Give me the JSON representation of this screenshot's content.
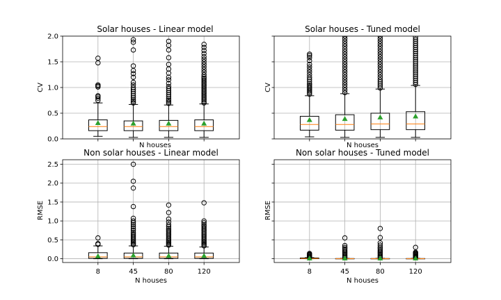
{
  "chart_data": [
    {
      "type": "box",
      "title": "Solar houses - Linear model",
      "xlabel": "N houses",
      "ylabel": "CV",
      "categories": [
        "8",
        "45",
        "80",
        "120"
      ],
      "ylim": [
        0,
        2.0
      ],
      "yticks": [
        "0.0",
        "0.5",
        "1.0",
        "1.5",
        "2.0"
      ],
      "show_xticklabels": false,
      "show_yticklabels": true,
      "grid": true,
      "boxes": [
        {
          "whislo": 0.05,
          "q1": 0.16,
          "median": 0.24,
          "q3": 0.37,
          "whishi": 0.7,
          "mean": 0.31,
          "fliers": [
            0.75,
            0.79,
            0.82,
            0.84,
            1.01,
            1.03,
            1.05,
            1.48,
            1.57
          ]
        },
        {
          "whislo": 0.03,
          "q1": 0.16,
          "median": 0.24,
          "q3": 0.35,
          "whishi": 0.67,
          "mean": 0.3,
          "fliers": [
            0.7,
            0.73,
            0.76,
            0.8,
            0.84,
            0.88,
            0.92,
            0.96,
            1.0,
            1.05,
            1.1,
            1.2,
            1.27,
            1.33,
            1.42,
            1.73,
            1.88,
            1.93
          ]
        },
        {
          "whislo": 0.03,
          "q1": 0.16,
          "median": 0.24,
          "q3": 0.36,
          "whishi": 0.66,
          "mean": 0.3,
          "fliers": [
            0.69,
            0.72,
            0.75,
            0.78,
            0.82,
            0.86,
            0.9,
            0.94,
            0.98,
            1.02,
            1.08,
            1.15,
            1.2,
            1.28,
            1.36,
            1.45,
            1.58,
            1.73,
            1.82,
            1.9
          ]
        },
        {
          "whislo": 0.03,
          "q1": 0.16,
          "median": 0.24,
          "q3": 0.37,
          "whishi": 0.68,
          "mean": 0.3,
          "fliers": [
            0.7,
            0.73,
            0.76,
            0.79,
            0.82,
            0.85,
            0.88,
            0.91,
            0.94,
            0.97,
            1.0,
            1.03,
            1.06,
            1.09,
            1.12,
            1.15,
            1.18,
            1.21,
            1.25,
            1.3,
            1.35,
            1.4,
            1.45,
            1.5,
            1.55,
            1.6,
            1.66,
            1.72,
            1.78,
            1.84
          ]
        }
      ]
    },
    {
      "type": "box",
      "title": "Solar houses - Tuned model",
      "xlabel": "N houses",
      "ylabel": "CV",
      "categories": [
        "8",
        "45",
        "80",
        "120"
      ],
      "ylim": [
        0,
        2.0
      ],
      "yticks": [
        "0.0",
        "0.5",
        "1.0",
        "1.5",
        "2.0"
      ],
      "show_xticklabels": false,
      "show_yticklabels": false,
      "grid": true,
      "boxes": [
        {
          "whislo": 0.04,
          "q1": 0.17,
          "median": 0.28,
          "q3": 0.44,
          "whishi": 0.84,
          "mean": 0.37,
          "fliers": [
            0.87,
            0.9,
            0.93,
            0.96,
            0.99,
            1.02,
            1.05,
            1.08,
            1.12,
            1.16,
            1.2,
            1.25,
            1.3,
            1.35,
            1.4,
            1.45,
            1.52,
            1.58,
            1.62,
            1.65
          ]
        },
        {
          "whislo": 0.03,
          "q1": 0.17,
          "median": 0.28,
          "q3": 0.47,
          "whishi": 0.88,
          "mean": 0.39,
          "fliers": [
            0.9,
            0.95,
            1.0,
            1.05,
            1.1,
            1.15,
            1.2,
            1.25,
            1.3,
            1.35,
            1.4,
            1.45,
            1.5,
            1.55,
            1.6,
            1.65,
            1.7,
            1.75,
            1.8,
            1.85,
            1.9,
            1.95,
            2.0
          ]
        },
        {
          "whislo": 0.03,
          "q1": 0.18,
          "median": 0.29,
          "q3": 0.5,
          "whishi": 0.97,
          "mean": 0.42,
          "fliers": [
            0.99,
            1.03,
            1.07,
            1.11,
            1.15,
            1.2,
            1.25,
            1.3,
            1.35,
            1.4,
            1.45,
            1.5,
            1.55,
            1.6,
            1.65,
            1.7,
            1.75,
            1.8,
            1.85,
            1.9,
            1.95,
            2.0
          ]
        },
        {
          "whislo": 0.03,
          "q1": 0.18,
          "median": 0.29,
          "q3": 0.53,
          "whishi": 1.04,
          "mean": 0.44,
          "fliers": [
            1.06,
            1.1,
            1.14,
            1.18,
            1.22,
            1.26,
            1.3,
            1.34,
            1.38,
            1.42,
            1.46,
            1.5,
            1.54,
            1.58,
            1.62,
            1.66,
            1.7,
            1.74,
            1.78,
            1.82,
            1.86,
            1.9,
            1.94,
            1.98
          ]
        }
      ]
    },
    {
      "type": "box",
      "title": "Non solar houses - Linear model",
      "xlabel": "N houses",
      "ylabel": "RMSE",
      "categories": [
        "8",
        "45",
        "80",
        "120"
      ],
      "ylim": [
        -0.1,
        2.62
      ],
      "yticks": [
        "0.0",
        "0.5",
        "1.0",
        "1.5",
        "2.0",
        "2.5"
      ],
      "show_xticklabels": true,
      "show_yticklabels": true,
      "grid": true,
      "boxes": [
        {
          "whislo": 0.0,
          "q1": 0.01,
          "median": 0.05,
          "q3": 0.16,
          "whishi": 0.34,
          "mean": 0.07,
          "fliers": [
            0.38,
            0.4,
            0.55
          ]
        },
        {
          "whislo": 0.0,
          "q1": 0.01,
          "median": 0.05,
          "q3": 0.15,
          "whishi": 0.34,
          "mean": 0.09,
          "fliers": [
            0.37,
            0.4,
            0.43,
            0.46,
            0.5,
            0.54,
            0.58,
            0.62,
            0.66,
            0.7,
            0.75,
            0.8,
            0.85,
            0.9,
            0.95,
            1.0,
            1.07,
            1.38,
            1.87,
            2.05,
            2.5
          ]
        },
        {
          "whislo": 0.0,
          "q1": 0.01,
          "median": 0.05,
          "q3": 0.15,
          "whishi": 0.33,
          "mean": 0.08,
          "fliers": [
            0.36,
            0.39,
            0.42,
            0.45,
            0.48,
            0.52,
            0.56,
            0.6,
            0.64,
            0.68,
            0.72,
            0.76,
            0.8,
            0.85,
            0.9,
            0.97,
            1.05,
            1.22,
            1.42
          ]
        },
        {
          "whislo": 0.0,
          "q1": 0.01,
          "median": 0.05,
          "q3": 0.15,
          "whishi": 0.31,
          "mean": 0.08,
          "fliers": [
            0.34,
            0.37,
            0.4,
            0.43,
            0.46,
            0.5,
            0.54,
            0.58,
            0.62,
            0.66,
            0.7,
            0.74,
            0.78,
            0.82,
            0.86,
            0.9,
            0.95,
            1.0,
            1.48
          ]
        }
      ]
    },
    {
      "type": "box",
      "title": "Non solar houses - Tuned model",
      "xlabel": "N houses",
      "ylabel": "RMSE",
      "categories": [
        "8",
        "45",
        "80",
        "120"
      ],
      "ylim": [
        -0.1,
        2.62
      ],
      "yticks": [
        "0.0",
        "0.5",
        "1.0",
        "1.5",
        "2.0",
        "2.5"
      ],
      "show_xticklabels": true,
      "show_yticklabels": false,
      "grid": true,
      "boxes": [
        {
          "whislo": 0.0,
          "q1": 0.0,
          "median": 0.005,
          "q3": 0.02,
          "whishi": 0.03,
          "mean": 0.01,
          "fliers": [
            0.04,
            0.06,
            0.08,
            0.1,
            0.12,
            0.14
          ]
        },
        {
          "whislo": 0.0,
          "q1": 0.0,
          "median": 0.002,
          "q3": 0.005,
          "whishi": 0.01,
          "mean": 0.01,
          "fliers": [
            0.03,
            0.06,
            0.09,
            0.12,
            0.15,
            0.18,
            0.22,
            0.26,
            0.3,
            0.35,
            0.55
          ]
        },
        {
          "whislo": 0.0,
          "q1": 0.0,
          "median": 0.002,
          "q3": 0.005,
          "whishi": 0.01,
          "mean": 0.01,
          "fliers": [
            0.03,
            0.06,
            0.09,
            0.12,
            0.15,
            0.18,
            0.22,
            0.26,
            0.3,
            0.36,
            0.42,
            0.56,
            0.8
          ]
        },
        {
          "whislo": 0.0,
          "q1": 0.0,
          "median": 0.002,
          "q3": 0.005,
          "whishi": 0.01,
          "mean": 0.01,
          "fliers": [
            0.03,
            0.05,
            0.07,
            0.09,
            0.11,
            0.13,
            0.15,
            0.17,
            0.3
          ]
        }
      ]
    }
  ]
}
